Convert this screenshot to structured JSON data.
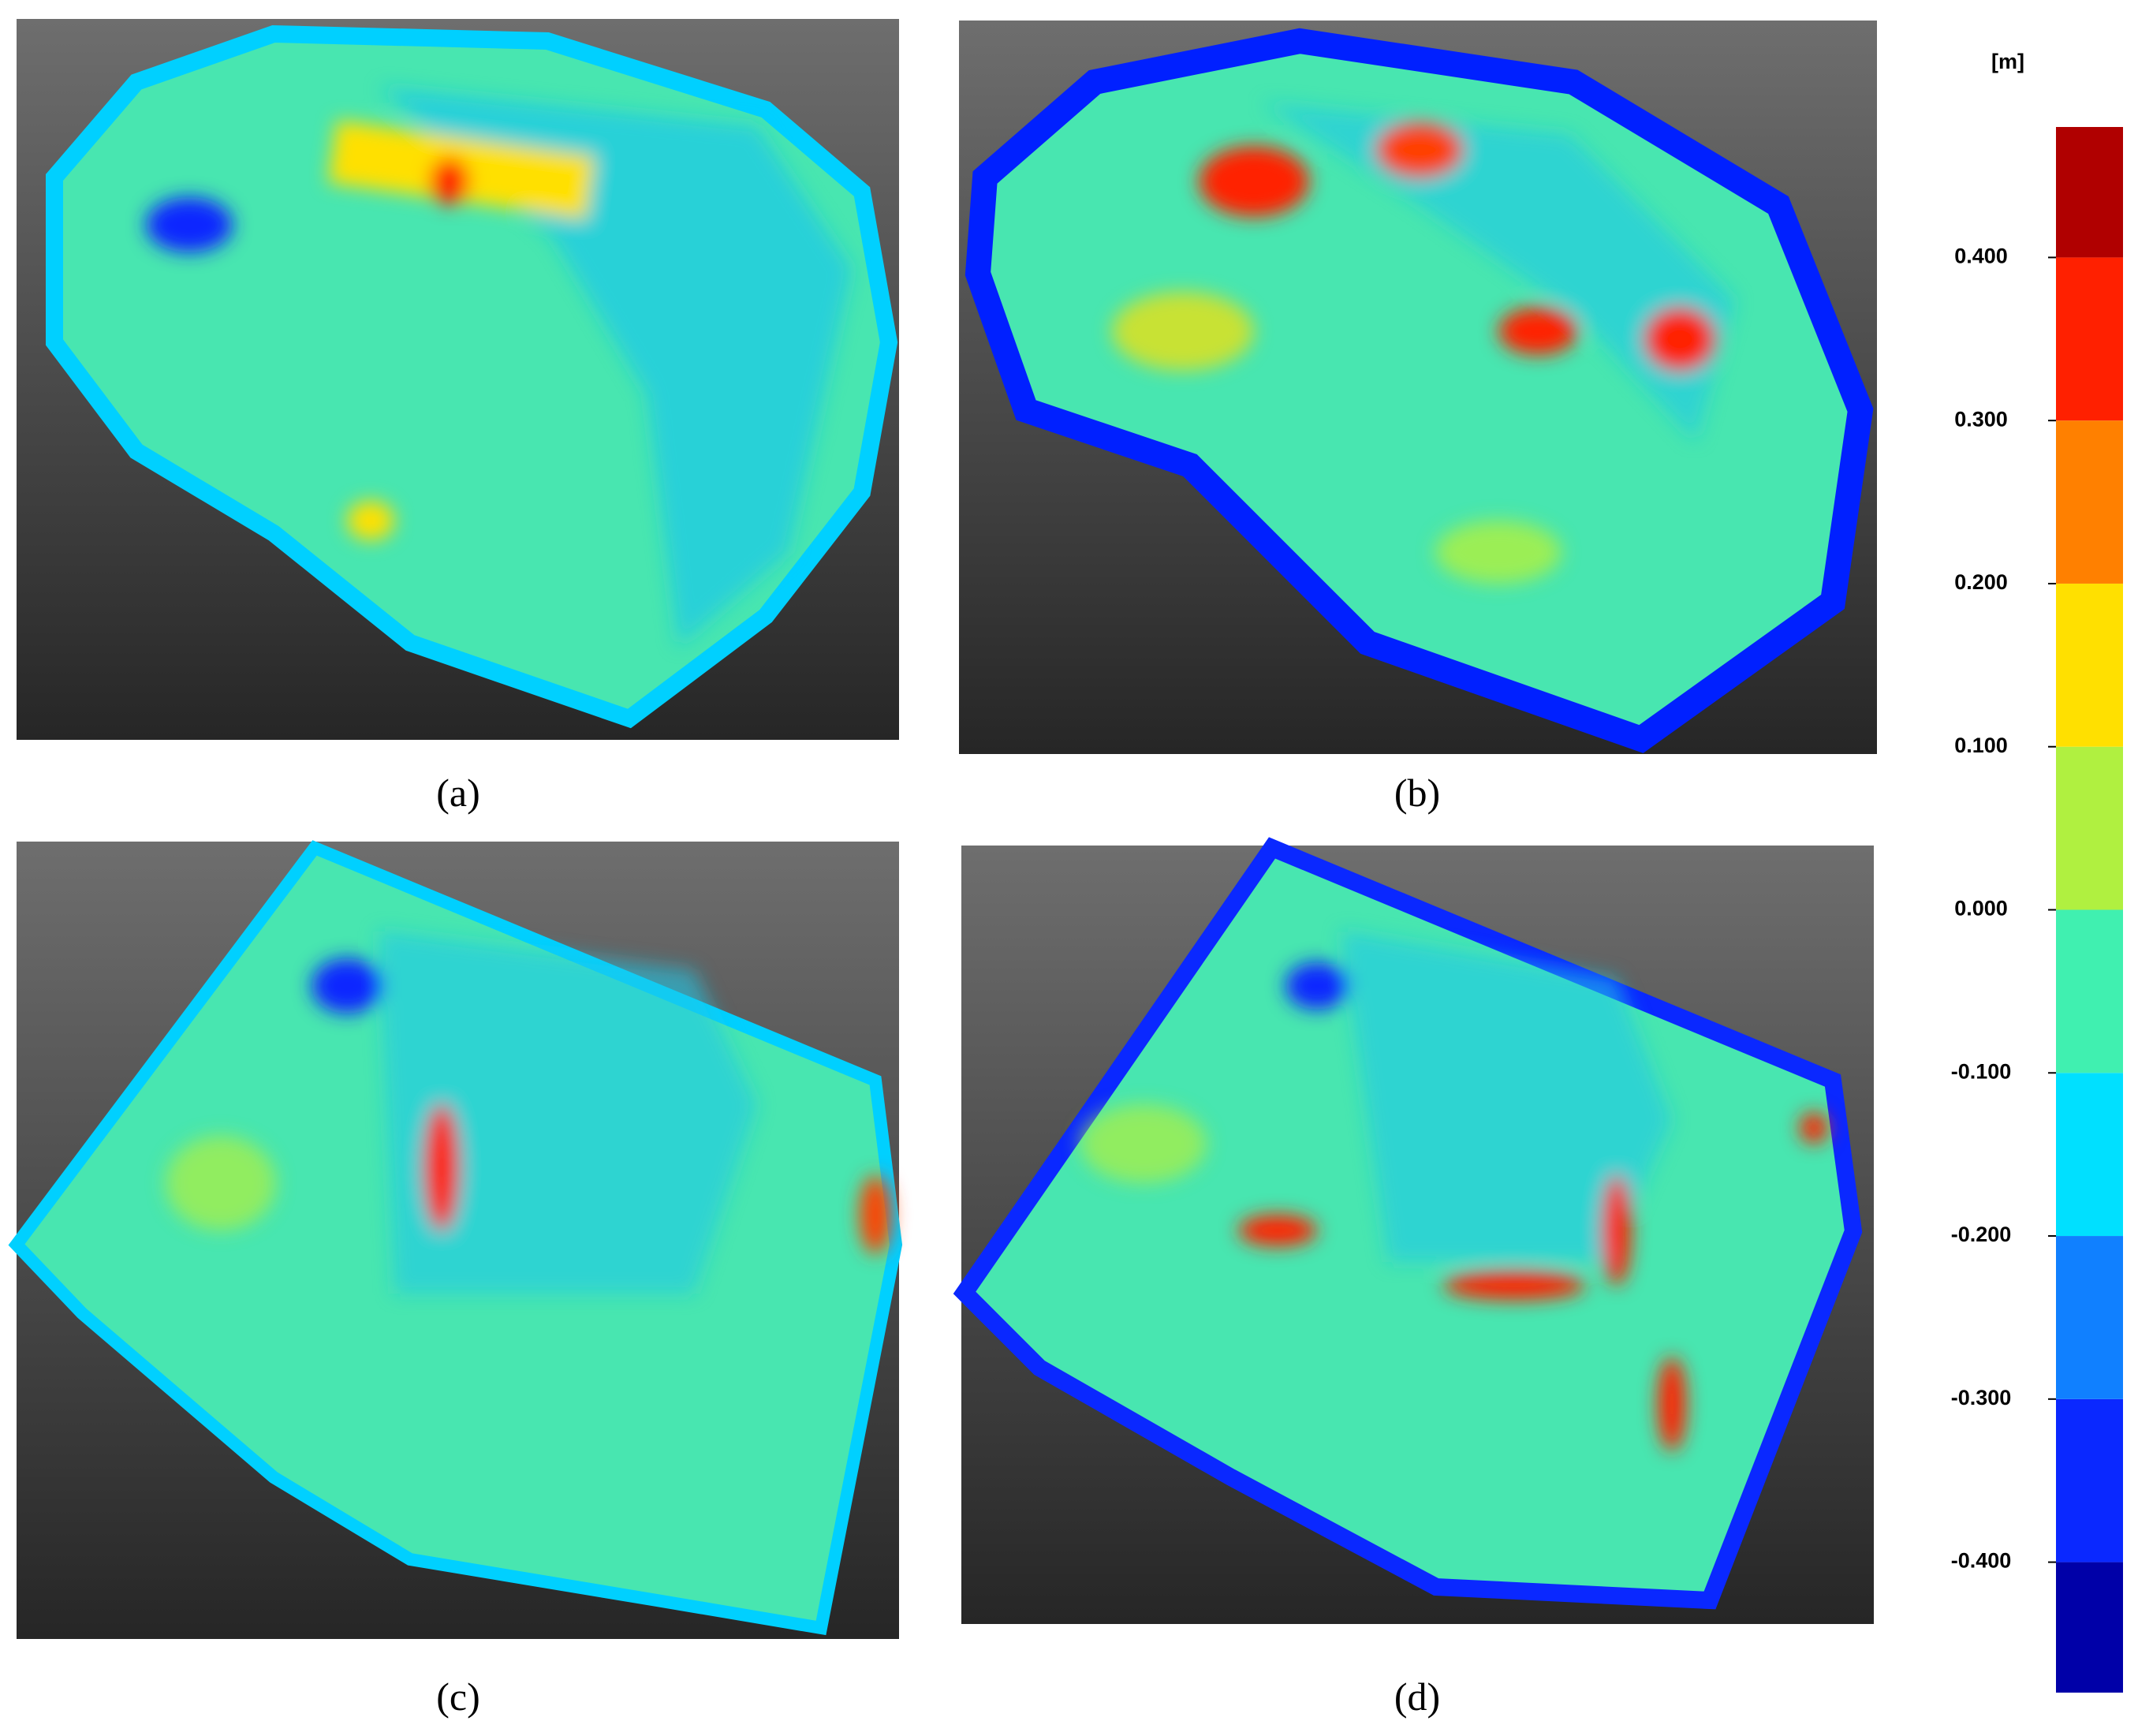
{
  "panels": [
    {
      "label": "(a)"
    },
    {
      "label": "(b)"
    },
    {
      "label": "(c)"
    },
    {
      "label": "(d)"
    }
  ],
  "colorbar": {
    "unit": "[m]",
    "lim": [
      -0.48,
      0.48
    ],
    "ticks": [
      {
        "value": -0.4,
        "label": "-0.400"
      },
      {
        "value": -0.3,
        "label": "-0.300"
      },
      {
        "value": -0.2,
        "label": "-0.200"
      },
      {
        "value": -0.1,
        "label": "-0.100"
      },
      {
        "value": 0,
        "label": "0.000"
      },
      {
        "value": 0.1,
        "label": "0.100"
      },
      {
        "value": 0.2,
        "label": "0.200"
      },
      {
        "value": 0.3,
        "label": "0.300"
      },
      {
        "value": 0.4,
        "label": "0.400"
      }
    ],
    "colors": [
      "#0000a8",
      "#0a28ff",
      "#1080ff",
      "#00e0ff",
      "#40f0b0",
      "#b0f040",
      "#ffe000",
      "#ff8000",
      "#ff2000",
      "#b00000"
    ]
  }
}
